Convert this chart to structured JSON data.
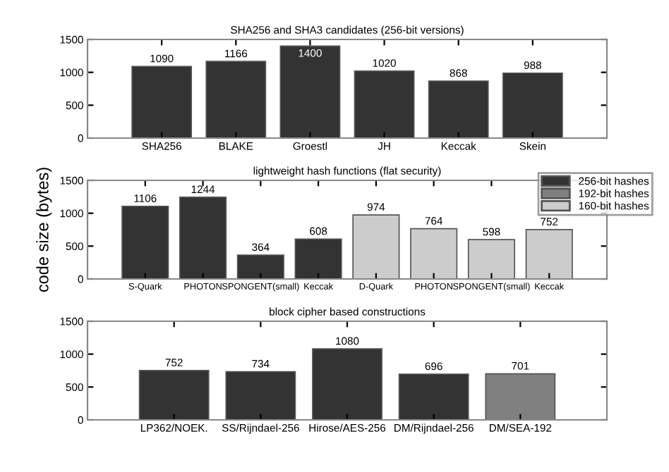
{
  "chart_data": [
    {
      "type": "bar",
      "title": "SHA256 and SHA3 candidates (256-bit versions)",
      "categories": [
        "SHA256",
        "BLAKE",
        "Groestl",
        "JH",
        "Keccak",
        "Skein"
      ],
      "series": [
        {
          "color": "#333333",
          "values": [
            1090,
            1166,
            1400,
            1020,
            868,
            988
          ]
        }
      ],
      "ylim": [
        0,
        1500
      ],
      "yticks": [
        0,
        500,
        1000,
        1500
      ],
      "grid": false,
      "data_labels": true
    },
    {
      "type": "bar",
      "title": "lightweight hash functions (flat security)",
      "ylabel": "code size (bytes)",
      "categories": [
        "S-Quark",
        "PHOTON",
        "SPONGENT(small)",
        "Keccak",
        "D-Quark",
        "PHOTON",
        "SPONGENT(small)",
        "Keccak"
      ],
      "series": [
        {
          "name": "256-bit hashes",
          "color": "#333333",
          "values": [
            1106,
            1244,
            364,
            608,
            null,
            null,
            null,
            null
          ]
        },
        {
          "name": "192-bit hashes",
          "color": "#808080",
          "values": [
            null,
            null,
            null,
            null,
            null,
            null,
            null,
            null
          ]
        },
        {
          "name": "160-bit hashes",
          "color": "#cccccc",
          "values": [
            null,
            null,
            null,
            null,
            974,
            764,
            598,
            752
          ]
        }
      ],
      "ylim": [
        0,
        1500
      ],
      "yticks": [
        0,
        500,
        1000,
        1500
      ],
      "grid": false,
      "data_labels": true,
      "legend": "top right"
    },
    {
      "type": "bar",
      "title": "block cipher based constructions",
      "categories": [
        "LP362/NOEK.",
        "SS/Rijndael-256",
        "Hirose/AES-256",
        "DM/Rijndael-256",
        "DM/SEA-192"
      ],
      "series": [
        {
          "colors": [
            "#333333",
            "#333333",
            "#333333",
            "#333333",
            "#808080"
          ],
          "values": [
            752,
            734,
            1080,
            696,
            701
          ]
        }
      ],
      "ylim": [
        0,
        1500
      ],
      "yticks": [
        0,
        500,
        1000,
        1500
      ],
      "grid": false,
      "data_labels": true
    }
  ]
}
